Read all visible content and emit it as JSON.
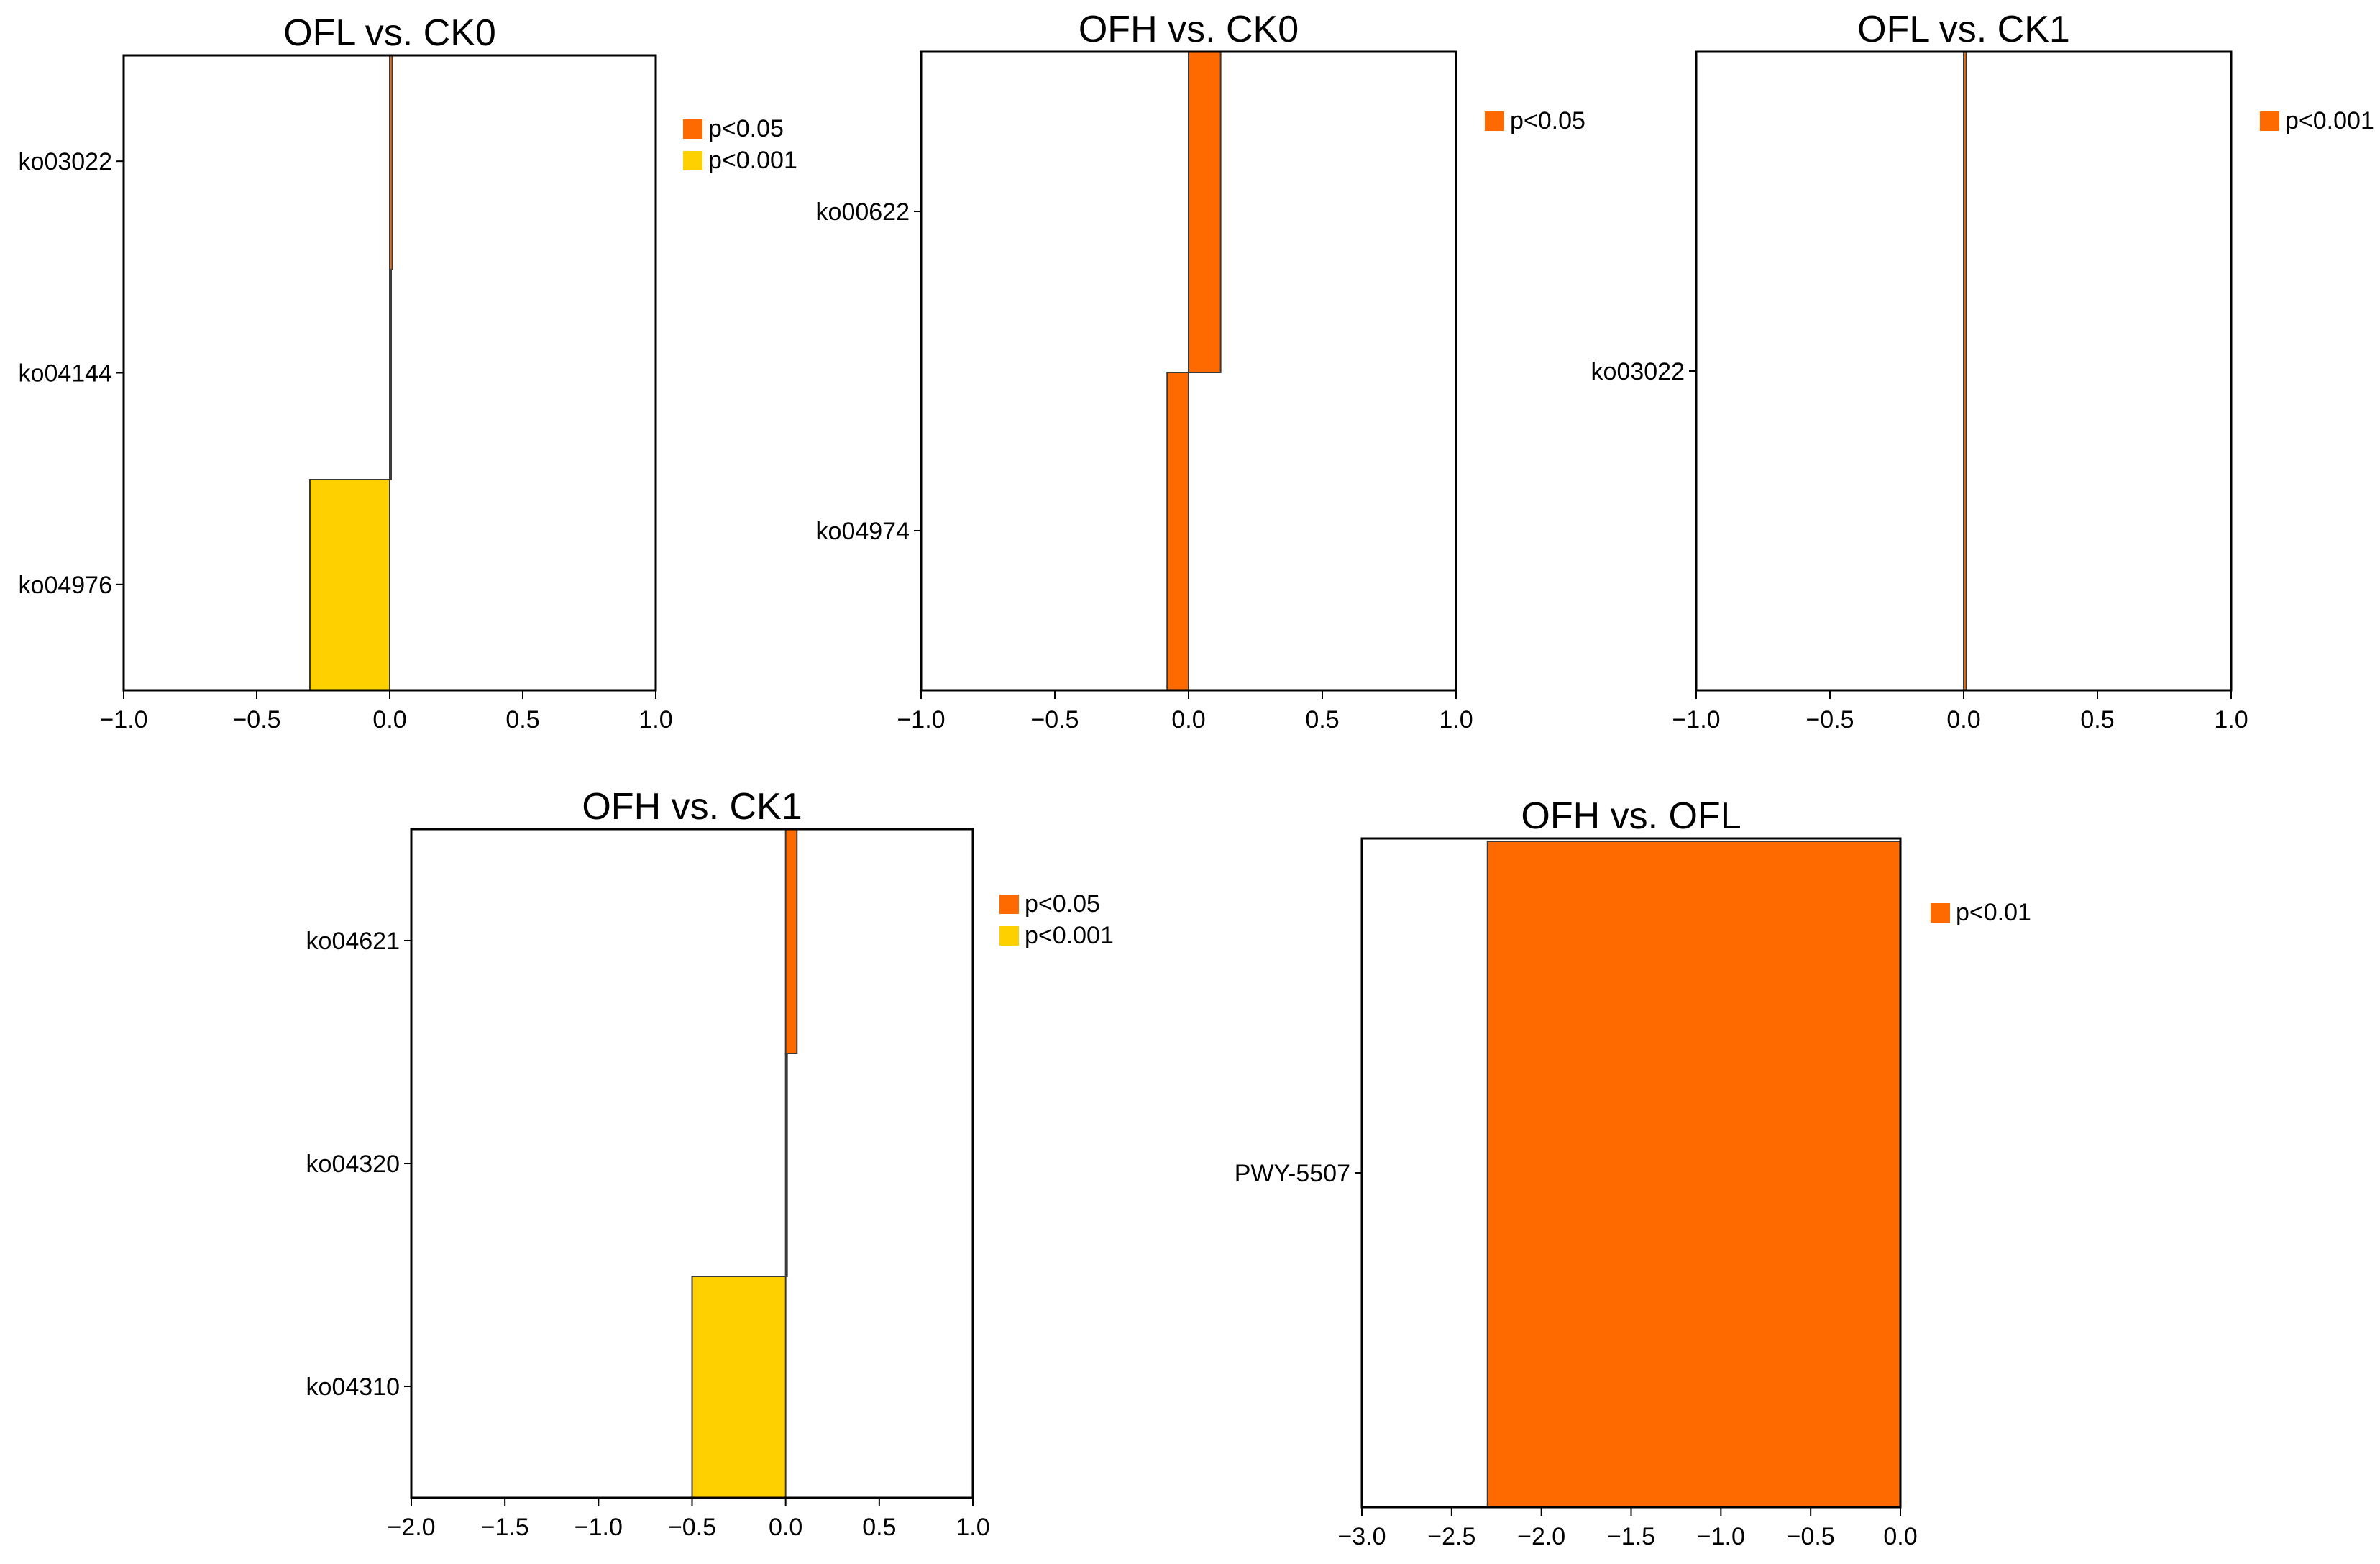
{
  "colors": {
    "orange": "#FF6A00",
    "yellow": "#FFD000",
    "frame": "#000000"
  },
  "chart_data": [
    {
      "type": "bar",
      "orientation": "horizontal",
      "title": "OFL vs. CK0",
      "categories": [
        "ko03022",
        "ko04144",
        "ko04976"
      ],
      "xlim": [
        -1.0,
        1.0
      ],
      "xticks": [
        "−1.0",
        "−0.5",
        "0.0",
        "0.5",
        "1.0"
      ],
      "xtick_values": [
        -1.0,
        -0.5,
        0.0,
        0.5,
        1.0
      ],
      "bars": [
        {
          "category": "ko03022",
          "value": 0.01,
          "significance": "p<0.05"
        },
        {
          "category": "ko04144",
          "value": 0.005,
          "significance": "p<0.001"
        },
        {
          "category": "ko04976",
          "value": -0.3,
          "significance": "p<0.001"
        }
      ],
      "legend": [
        {
          "label": "p<0.05",
          "color": "#FF6A00"
        },
        {
          "label": "p<0.001",
          "color": "#FFD000"
        }
      ],
      "legend_position": "right"
    },
    {
      "type": "bar",
      "orientation": "horizontal",
      "title": "OFH vs. CK0",
      "categories": [
        "ko00622",
        "ko04974"
      ],
      "xlim": [
        -1.0,
        1.0
      ],
      "xticks": [
        "−1.0",
        "−0.5",
        "0.0",
        "0.5",
        "1.0"
      ],
      "xtick_values": [
        -1.0,
        -0.5,
        0.0,
        0.5,
        1.0
      ],
      "bars": [
        {
          "category": "ko00622",
          "value": 0.12,
          "significance": "p<0.05"
        },
        {
          "category": "ko04974",
          "value": -0.08,
          "significance": "p<0.05"
        }
      ],
      "legend": [
        {
          "label": "p<0.05",
          "color": "#FF6A00"
        }
      ],
      "legend_position": "right"
    },
    {
      "type": "bar",
      "orientation": "horizontal",
      "title": "OFL vs. CK1",
      "categories": [
        "ko03022"
      ],
      "xlim": [
        -1.0,
        1.0
      ],
      "xticks": [
        "−1.0",
        "−0.5",
        "0.0",
        "0.5",
        "1.0"
      ],
      "xtick_values": [
        -1.0,
        -0.5,
        0.0,
        0.5,
        1.0
      ],
      "bars": [
        {
          "category": "ko03022",
          "value": 0.01,
          "significance": "p<0.001"
        }
      ],
      "legend": [
        {
          "label": "p<0.001",
          "color": "#FF6A00"
        }
      ],
      "legend_position": "right"
    },
    {
      "type": "bar",
      "orientation": "horizontal",
      "title": "OFH vs. CK1",
      "categories": [
        "ko04621",
        "ko04320",
        "ko04310"
      ],
      "xlim": [
        -2.0,
        1.0
      ],
      "xticks": [
        "−2.0",
        "−1.5",
        "−1.0",
        "−0.5",
        "0.0",
        "0.5",
        "1.0"
      ],
      "xtick_values": [
        -2.0,
        -1.5,
        -1.0,
        -0.5,
        0.0,
        0.5,
        1.0
      ],
      "bars": [
        {
          "category": "ko04621",
          "value": 0.06,
          "significance": "p<0.05"
        },
        {
          "category": "ko04320",
          "value": 0.0,
          "significance": "p<0.05"
        },
        {
          "category": "ko04310",
          "value": -0.5,
          "significance": "p<0.001"
        }
      ],
      "legend": [
        {
          "label": "p<0.05",
          "color": "#FF6A00"
        },
        {
          "label": "p<0.001",
          "color": "#FFD000"
        }
      ],
      "legend_position": "right"
    },
    {
      "type": "bar",
      "orientation": "horizontal",
      "title": "OFH vs. OFL",
      "categories": [
        "PWY-5507"
      ],
      "xlim": [
        -3.0,
        0.0
      ],
      "xticks": [
        "−3.0",
        "−2.5",
        "−2.0",
        "−1.5",
        "−1.0",
        "−0.5",
        "0.0"
      ],
      "xtick_values": [
        -3.0,
        -2.5,
        -2.0,
        -1.5,
        -1.0,
        -0.5,
        0.0
      ],
      "bars": [
        {
          "category": "PWY-5507",
          "value": -2.3,
          "significance": "p<0.01"
        }
      ],
      "legend": [
        {
          "label": "p<0.01",
          "color": "#FF6A00"
        }
      ],
      "legend_position": "right"
    }
  ]
}
